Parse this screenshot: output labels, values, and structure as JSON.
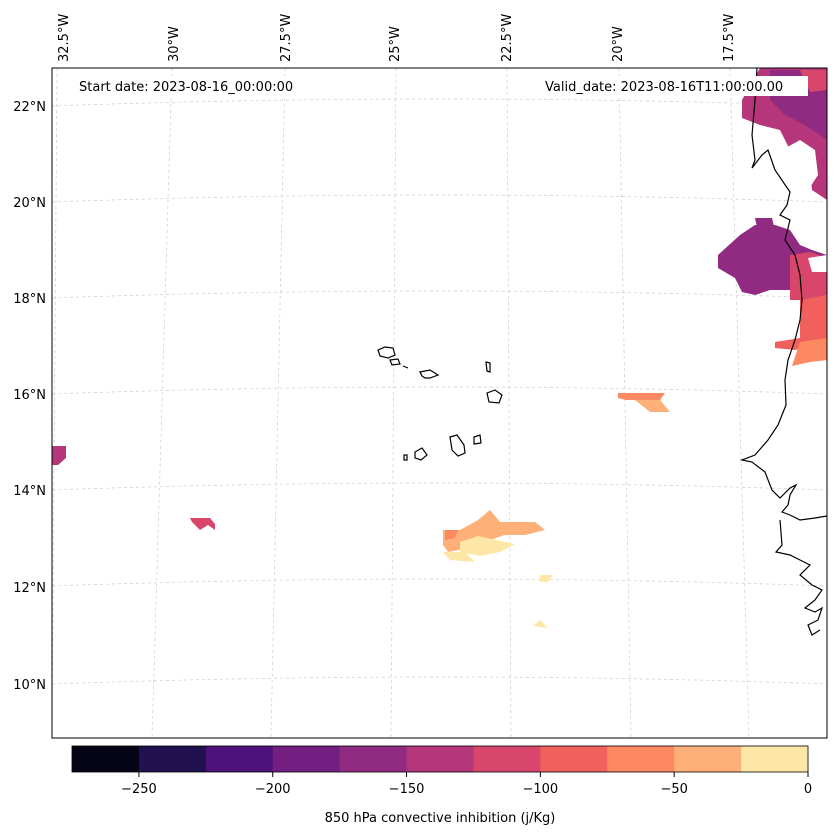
{
  "map": {
    "start_label": "Start date: 2023-08-16_00:00:00",
    "valid_label": "Valid_date: 2023-08-16T11:00:00.00",
    "lon_labels": [
      "32.5°W",
      "30°W",
      "27.5°W",
      "25°W",
      "22.5°W",
      "20°W",
      "17.5°W"
    ],
    "lat_labels": [
      "22°N",
      "20°N",
      "18°N",
      "16°N",
      "14°N",
      "12°N",
      "10°N"
    ],
    "gridlines": true
  },
  "colorbar": {
    "label": "850 hPa convective inhibition (j/Kg)",
    "ticks": [
      "−250",
      "−200",
      "−150",
      "−100",
      "−50",
      "0"
    ],
    "colors": [
      "#050416",
      "#221150",
      "#4d117b",
      "#721f81",
      "#912b81",
      "#b5367a",
      "#d8466c",
      "#f1605d",
      "#fc8961",
      "#feb078",
      "#fde7a7"
    ],
    "levels": [
      -275,
      -250,
      -225,
      -200,
      -175,
      -150,
      -125,
      -100,
      -75,
      -50,
      -25,
      0
    ]
  }
}
